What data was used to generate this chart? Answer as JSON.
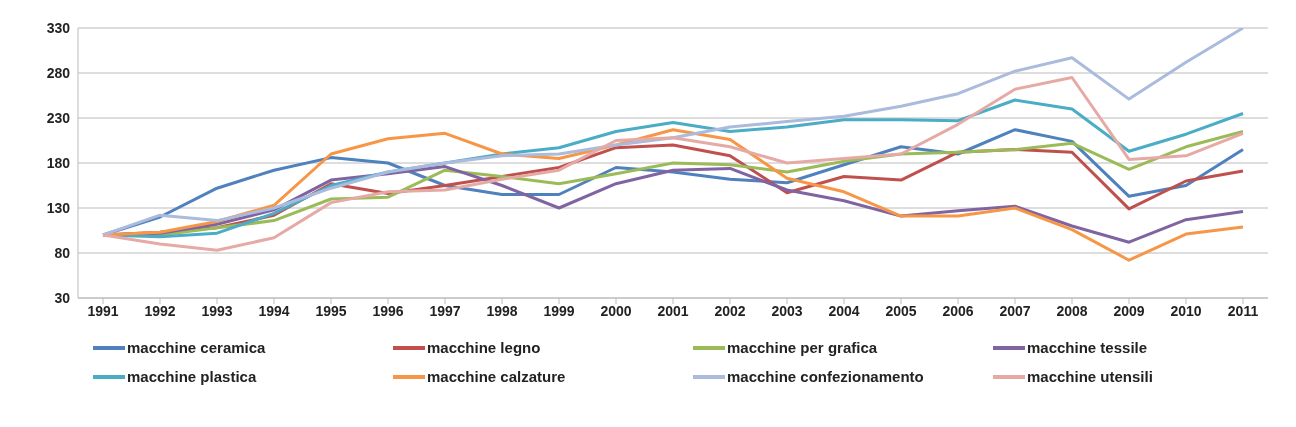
{
  "chart_data": {
    "type": "line",
    "categories": [
      "1991",
      "1992",
      "1993",
      "1994",
      "1995",
      "1996",
      "1997",
      "1998",
      "1999",
      "2000",
      "2001",
      "2002",
      "2003",
      "2004",
      "2005",
      "2006",
      "2007",
      "2008",
      "2009",
      "2010",
      "2011"
    ],
    "series": [
      {
        "name": "macchine ceramica",
        "color": "#4f81bd",
        "values": [
          100,
          120,
          152,
          172,
          186,
          180,
          155,
          145,
          145,
          175,
          170,
          162,
          158,
          178,
          198,
          190,
          217,
          204,
          143,
          155,
          195
        ]
      },
      {
        "name": "macchine legno",
        "color": "#c0504d",
        "values": [
          100,
          103,
          108,
          122,
          157,
          146,
          155,
          165,
          175,
          197,
          200,
          188,
          147,
          165,
          161,
          192,
          195,
          192,
          129,
          160,
          171
        ]
      },
      {
        "name": "macchine per grafica",
        "color": "#9bbb59",
        "values": [
          100,
          100,
          108,
          116,
          140,
          142,
          172,
          165,
          157,
          168,
          180,
          178,
          170,
          182,
          190,
          192,
          195,
          202,
          173,
          198,
          215
        ]
      },
      {
        "name": "macchine tessile",
        "color": "#8064a2",
        "values": [
          100,
          102,
          112,
          128,
          161,
          168,
          176,
          155,
          130,
          157,
          172,
          174,
          150,
          138,
          121,
          127,
          132,
          110,
          92,
          117,
          126
        ]
      },
      {
        "name": "macchine plastica",
        "color": "#4bacc6",
        "values": [
          100,
          98,
          102,
          124,
          155,
          170,
          180,
          190,
          197,
          215,
          225,
          215,
          220,
          228,
          228,
          227,
          250,
          240,
          193,
          212,
          235
        ]
      },
      {
        "name": "macchine calzature",
        "color": "#f79646",
        "values": [
          100,
          103,
          115,
          133,
          190,
          207,
          213,
          190,
          185,
          200,
          217,
          206,
          163,
          148,
          121,
          121,
          130,
          106,
          72,
          101,
          109
        ]
      },
      {
        "name": "macchine confezionamento",
        "color": "#aabbdd",
        "values": [
          100,
          122,
          116,
          130,
          152,
          170,
          180,
          188,
          190,
          200,
          208,
          220,
          226,
          232,
          243,
          257,
          282,
          297,
          251,
          292,
          330
        ]
      },
      {
        "name": "macchine utensili",
        "color": "#e6aaa6",
        "values": [
          100,
          90,
          83,
          97,
          136,
          148,
          150,
          162,
          172,
          205,
          208,
          198,
          180,
          185,
          190,
          223,
          262,
          275,
          184,
          188,
          213
        ]
      }
    ],
    "ylim": [
      30,
      330
    ],
    "yticks": [
      30,
      80,
      130,
      180,
      230,
      280,
      330
    ],
    "grid": "y",
    "legend": "bottom",
    "marker": "none",
    "line_style": "solid"
  }
}
